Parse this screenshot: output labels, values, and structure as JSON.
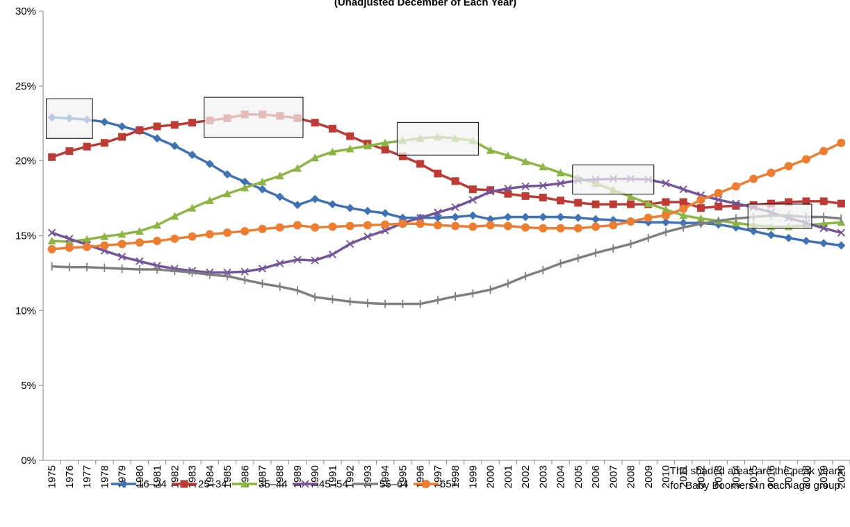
{
  "chart_data": {
    "type": "line",
    "subtitle": "(Unadjusted December of Each Year)",
    "annotation": [
      "The shaded areas are the peak years",
      "for Baby Boomers in each age group."
    ],
    "categories": [
      "1975",
      "1976",
      "1977",
      "1978",
      "1979",
      "1980",
      "1981",
      "1982",
      "1983",
      "1984",
      "1985",
      "1986",
      "1987",
      "1988",
      "1989",
      "1990",
      "1991",
      "1992",
      "1993",
      "1994",
      "1995",
      "1996",
      "1997",
      "1998",
      "1999",
      "2000",
      "2001",
      "2002",
      "2003",
      "2004",
      "2005",
      "2006",
      "2007",
      "2008",
      "2009",
      "2010",
      "2011",
      "2012",
      "2013",
      "2014",
      "2015",
      "2016",
      "2017",
      "2018",
      "2019",
      "2020"
    ],
    "ylim": [
      0,
      30
    ],
    "yticks": [
      {
        "value": 0,
        "label": "0%"
      },
      {
        "value": 5,
        "label": "5%"
      },
      {
        "value": 10,
        "label": "10%"
      },
      {
        "value": 15,
        "label": "15%"
      },
      {
        "value": 20,
        "label": "20%"
      },
      {
        "value": 25,
        "label": "25%"
      },
      {
        "value": 30,
        "label": "30%"
      }
    ],
    "legend": "bottom",
    "series": [
      {
        "name": "16–24",
        "color": "#3f72b5",
        "marker": "diamond",
        "values": [
          22.9,
          22.85,
          22.75,
          22.6,
          22.3,
          22.0,
          21.5,
          21.0,
          20.4,
          19.8,
          19.1,
          18.6,
          18.1,
          17.6,
          17.05,
          17.45,
          17.1,
          16.85,
          16.65,
          16.5,
          16.2,
          16.2,
          16.2,
          16.25,
          16.35,
          16.1,
          16.25,
          16.25,
          16.25,
          16.25,
          16.2,
          16.1,
          16.05,
          15.95,
          15.9,
          15.9,
          15.85,
          15.85,
          15.75,
          15.55,
          15.3,
          15.05,
          14.85,
          14.65,
          14.5,
          14.35
        ]
      },
      {
        "name": "25–34",
        "color": "#be3a34",
        "marker": "square",
        "values": [
          20.25,
          20.65,
          20.95,
          21.2,
          21.6,
          22.05,
          22.3,
          22.4,
          22.55,
          22.7,
          22.85,
          23.1,
          23.1,
          23.0,
          22.85,
          22.55,
          22.15,
          21.65,
          21.15,
          20.75,
          20.3,
          19.8,
          19.15,
          18.65,
          18.1,
          18.05,
          17.8,
          17.65,
          17.55,
          17.35,
          17.2,
          17.1,
          17.1,
          17.1,
          17.1,
          17.25,
          17.25,
          16.85,
          16.95,
          17.0,
          17.05,
          17.15,
          17.25,
          17.3,
          17.3,
          17.15
        ]
      },
      {
        "name": "35–44",
        "color": "#8db543",
        "marker": "triangle",
        "values": [
          14.65,
          14.6,
          14.75,
          14.95,
          15.1,
          15.3,
          15.7,
          16.3,
          16.85,
          17.35,
          17.8,
          18.2,
          18.6,
          19.0,
          19.5,
          20.2,
          20.6,
          20.8,
          21.0,
          21.2,
          21.35,
          21.5,
          21.6,
          21.5,
          21.35,
          20.7,
          20.35,
          19.95,
          19.6,
          19.2,
          18.85,
          18.5,
          18.05,
          17.6,
          17.15,
          16.75,
          16.35,
          16.15,
          16.0,
          15.85,
          15.7,
          15.6,
          15.6,
          15.7,
          15.8,
          15.9
        ]
      },
      {
        "name": "45–54",
        "color": "#74539a",
        "marker": "x",
        "values": [
          15.2,
          14.8,
          14.4,
          14.0,
          13.6,
          13.3,
          13.0,
          12.8,
          12.65,
          12.55,
          12.55,
          12.6,
          12.8,
          13.15,
          13.4,
          13.35,
          13.75,
          14.45,
          14.95,
          15.35,
          15.85,
          16.2,
          16.55,
          16.9,
          17.4,
          17.95,
          18.15,
          18.3,
          18.35,
          18.5,
          18.7,
          18.75,
          18.8,
          18.8,
          18.75,
          18.5,
          18.1,
          17.7,
          17.4,
          17.15,
          16.9,
          16.55,
          16.2,
          15.85,
          15.5,
          15.2
        ]
      },
      {
        "name": "55–64",
        "color": "#7f7f7f",
        "marker": "plus",
        "values": [
          12.95,
          12.9,
          12.9,
          12.85,
          12.8,
          12.75,
          12.75,
          12.65,
          12.55,
          12.4,
          12.3,
          12.05,
          11.8,
          11.6,
          11.35,
          10.9,
          10.75,
          10.6,
          10.5,
          10.45,
          10.45,
          10.45,
          10.7,
          10.95,
          11.15,
          11.4,
          11.8,
          12.3,
          12.7,
          13.15,
          13.5,
          13.85,
          14.15,
          14.45,
          14.85,
          15.25,
          15.55,
          15.8,
          16.0,
          16.15,
          16.25,
          16.35,
          16.35,
          16.25,
          16.25,
          16.15
        ]
      },
      {
        "name": "65+",
        "color": "#ed7d31",
        "marker": "circle",
        "values": [
          14.1,
          14.2,
          14.25,
          14.35,
          14.45,
          14.55,
          14.65,
          14.8,
          14.95,
          15.1,
          15.2,
          15.3,
          15.45,
          15.55,
          15.7,
          15.55,
          15.6,
          15.65,
          15.7,
          15.75,
          15.8,
          15.8,
          15.7,
          15.65,
          15.6,
          15.7,
          15.65,
          15.55,
          15.5,
          15.5,
          15.5,
          15.6,
          15.7,
          15.95,
          16.2,
          16.35,
          16.8,
          17.4,
          17.85,
          18.3,
          18.8,
          19.2,
          19.65,
          20.1,
          20.65,
          21.2
        ]
      }
    ]
  }
}
